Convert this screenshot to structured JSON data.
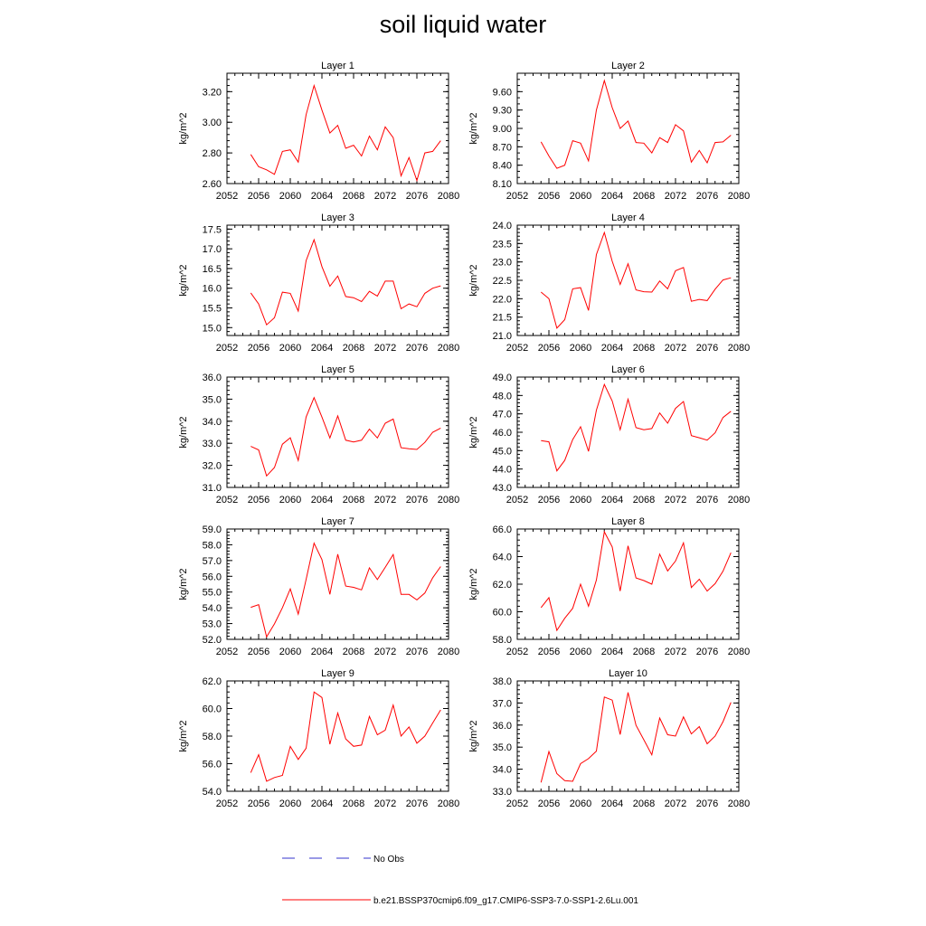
{
  "title": "soil liquid water",
  "legend": {
    "obs_label": "No Obs",
    "model_label": "b.e21.BSSP370cmip6.f09_g17.CMIP6-SSP3-7.0-SSP1-2.6Lu.001",
    "obs_color": "#3333cc",
    "model_color": "#ff0000"
  },
  "chart_data": [
    {
      "type": "line",
      "title": "Layer 1",
      "ylabel": "kg/m^2",
      "xlim": [
        2052,
        2080
      ],
      "xticks": [
        2052,
        2056,
        2060,
        2064,
        2068,
        2072,
        2076,
        2080
      ],
      "ylim": [
        2.6,
        3.32
      ],
      "yticks": [
        "2.60",
        "2.80",
        "3.00",
        "3.20"
      ],
      "yminor": 0.04,
      "x": [
        2055,
        2056,
        2057,
        2058,
        2059,
        2060,
        2061,
        2062,
        2063,
        2064,
        2065,
        2066,
        2067,
        2068,
        2069,
        2070,
        2071,
        2072,
        2073,
        2074,
        2075,
        2076,
        2077,
        2078,
        2079
      ],
      "y": [
        2.79,
        2.71,
        2.69,
        2.66,
        2.81,
        2.82,
        2.74,
        3.05,
        3.24,
        3.08,
        2.93,
        2.98,
        2.83,
        2.85,
        2.78,
        2.91,
        2.82,
        2.97,
        2.9,
        2.65,
        2.77,
        2.62,
        2.8,
        2.81,
        2.88
      ]
    },
    {
      "type": "line",
      "title": "Layer 2",
      "ylabel": "kg/m^2",
      "xlim": [
        2052,
        2080
      ],
      "xticks": [
        2052,
        2056,
        2060,
        2064,
        2068,
        2072,
        2076,
        2080
      ],
      "ylim": [
        8.1,
        9.9
      ],
      "yticks": [
        "8.10",
        "8.40",
        "8.70",
        "9.00",
        "9.30",
        "9.60"
      ],
      "yminor": 0.1,
      "x": [
        2055,
        2056,
        2057,
        2058,
        2059,
        2060,
        2061,
        2062,
        2063,
        2064,
        2065,
        2066,
        2067,
        2068,
        2069,
        2070,
        2071,
        2072,
        2073,
        2074,
        2075,
        2076,
        2077,
        2078,
        2079
      ],
      "y": [
        8.78,
        8.55,
        8.35,
        8.4,
        8.8,
        8.76,
        8.47,
        9.3,
        9.78,
        9.34,
        9.0,
        9.12,
        8.77,
        8.76,
        8.6,
        8.85,
        8.77,
        9.06,
        8.96,
        8.45,
        8.64,
        8.44,
        8.77,
        8.78,
        8.89
      ]
    },
    {
      "type": "line",
      "title": "Layer 3",
      "ylabel": "kg/m^2",
      "xlim": [
        2052,
        2080
      ],
      "xticks": [
        2052,
        2056,
        2060,
        2064,
        2068,
        2072,
        2076,
        2080
      ],
      "ylim": [
        14.8,
        17.6
      ],
      "yticks": [
        "15.0",
        "15.5",
        "16.0",
        "16.5",
        "17.0",
        "17.5"
      ],
      "yminor": 0.1,
      "x": [
        2055,
        2056,
        2057,
        2058,
        2059,
        2060,
        2061,
        2062,
        2063,
        2064,
        2065,
        2066,
        2067,
        2068,
        2069,
        2070,
        2071,
        2072,
        2073,
        2074,
        2075,
        2076,
        2077,
        2078,
        2079
      ],
      "y": [
        15.88,
        15.6,
        15.07,
        15.25,
        15.9,
        15.87,
        15.42,
        16.7,
        17.23,
        16.55,
        16.05,
        16.31,
        15.79,
        15.76,
        15.66,
        15.92,
        15.8,
        16.18,
        16.18,
        15.48,
        15.6,
        15.53,
        15.87,
        16.0,
        16.06
      ]
    },
    {
      "type": "line",
      "title": "Layer 4",
      "ylabel": "kg/m^2",
      "xlim": [
        2052,
        2080
      ],
      "xticks": [
        2052,
        2056,
        2060,
        2064,
        2068,
        2072,
        2076,
        2080
      ],
      "ylim": [
        21.0,
        24.0
      ],
      "yticks": [
        "21.0",
        "21.5",
        "22.0",
        "22.5",
        "23.0",
        "23.5",
        "24.0"
      ],
      "yminor": 0.1,
      "x": [
        2055,
        2056,
        2057,
        2058,
        2059,
        2060,
        2061,
        2062,
        2063,
        2064,
        2065,
        2066,
        2067,
        2068,
        2069,
        2070,
        2071,
        2072,
        2073,
        2074,
        2075,
        2076,
        2077,
        2078,
        2079
      ],
      "y": [
        22.18,
        22.0,
        21.2,
        21.43,
        22.27,
        22.3,
        21.68,
        23.2,
        23.8,
        23.02,
        22.39,
        22.95,
        22.24,
        22.19,
        22.18,
        22.48,
        22.27,
        22.76,
        22.85,
        21.93,
        21.98,
        21.95,
        22.26,
        22.51,
        22.57
      ]
    },
    {
      "type": "line",
      "title": "Layer 5",
      "ylabel": "kg/m^2",
      "xlim": [
        2052,
        2080
      ],
      "xticks": [
        2052,
        2056,
        2060,
        2064,
        2068,
        2072,
        2076,
        2080
      ],
      "ylim": [
        31.0,
        36.0
      ],
      "yticks": [
        "31.0",
        "32.0",
        "33.0",
        "34.0",
        "35.0",
        "36.0"
      ],
      "yminor": 0.2,
      "x": [
        2055,
        2056,
        2057,
        2058,
        2059,
        2060,
        2061,
        2062,
        2063,
        2064,
        2065,
        2066,
        2067,
        2068,
        2069,
        2070,
        2071,
        2072,
        2073,
        2074,
        2075,
        2076,
        2077,
        2078,
        2079
      ],
      "y": [
        32.86,
        32.7,
        31.52,
        31.9,
        32.96,
        33.25,
        32.22,
        34.19,
        35.07,
        34.19,
        33.24,
        34.24,
        33.14,
        33.06,
        33.14,
        33.64,
        33.24,
        33.91,
        34.1,
        32.8,
        32.75,
        32.72,
        33.04,
        33.5,
        33.69
      ]
    },
    {
      "type": "line",
      "title": "Layer 6",
      "ylabel": "kg/m^2",
      "xlim": [
        2052,
        2080
      ],
      "xticks": [
        2052,
        2056,
        2060,
        2064,
        2068,
        2072,
        2076,
        2080
      ],
      "ylim": [
        43.0,
        49.0
      ],
      "yticks": [
        "43.0",
        "44.0",
        "45.0",
        "46.0",
        "47.0",
        "48.0",
        "49.0"
      ],
      "yminor": 0.2,
      "x": [
        2055,
        2056,
        2057,
        2058,
        2059,
        2060,
        2061,
        2062,
        2063,
        2064,
        2065,
        2066,
        2067,
        2068,
        2069,
        2070,
        2071,
        2072,
        2073,
        2074,
        2075,
        2076,
        2077,
        2078,
        2079
      ],
      "y": [
        45.55,
        45.48,
        43.9,
        44.47,
        45.6,
        46.3,
        44.96,
        47.2,
        48.6,
        47.7,
        46.14,
        47.8,
        46.25,
        46.14,
        46.2,
        47.05,
        46.49,
        47.3,
        47.67,
        45.82,
        45.7,
        45.57,
        45.97,
        46.8,
        47.14
      ]
    },
    {
      "type": "line",
      "title": "Layer 7",
      "ylabel": "kg/m^2",
      "xlim": [
        2052,
        2080
      ],
      "xticks": [
        2052,
        2056,
        2060,
        2064,
        2068,
        2072,
        2076,
        2080
      ],
      "ylim": [
        52.0,
        59.0
      ],
      "yticks": [
        "52.0",
        "53.0",
        "54.0",
        "55.0",
        "56.0",
        "57.0",
        "58.0",
        "59.0"
      ],
      "yminor": 0.2,
      "x": [
        2055,
        2056,
        2057,
        2058,
        2059,
        2060,
        2061,
        2062,
        2063,
        2064,
        2065,
        2066,
        2067,
        2068,
        2069,
        2070,
        2071,
        2072,
        2073,
        2074,
        2075,
        2076,
        2077,
        2078,
        2079
      ],
      "y": [
        54.03,
        54.2,
        52.16,
        52.98,
        54.0,
        55.2,
        53.6,
        55.8,
        58.1,
        57.06,
        54.85,
        57.4,
        55.38,
        55.3,
        55.14,
        56.53,
        55.79,
        56.57,
        57.38,
        54.85,
        54.85,
        54.5,
        54.94,
        55.91,
        56.62
      ]
    },
    {
      "type": "line",
      "title": "Layer 8",
      "ylabel": "kg/m^2",
      "xlim": [
        2052,
        2080
      ],
      "xticks": [
        2052,
        2056,
        2060,
        2064,
        2068,
        2072,
        2076,
        2080
      ],
      "ylim": [
        58.0,
        66.0
      ],
      "yticks": [
        "58.0",
        "60.0",
        "62.0",
        "64.0",
        "66.0"
      ],
      "yminor": 0.4,
      "x": [
        2055,
        2056,
        2057,
        2058,
        2059,
        2060,
        2061,
        2062,
        2063,
        2064,
        2065,
        2066,
        2067,
        2068,
        2069,
        2070,
        2071,
        2072,
        2073,
        2074,
        2075,
        2076,
        2077,
        2078,
        2079
      ],
      "y": [
        60.3,
        61.02,
        58.65,
        59.53,
        60.25,
        62.0,
        60.4,
        62.3,
        65.8,
        64.7,
        61.5,
        64.78,
        62.45,
        62.26,
        62.0,
        64.18,
        62.96,
        63.68,
        65.0,
        61.76,
        62.36,
        61.5,
        62.04,
        62.94,
        64.28
      ]
    },
    {
      "type": "line",
      "title": "Layer 9",
      "ylabel": "kg/m^2",
      "xlim": [
        2052,
        2080
      ],
      "xticks": [
        2052,
        2056,
        2060,
        2064,
        2068,
        2072,
        2076,
        2080
      ],
      "ylim": [
        54.0,
        62.0
      ],
      "yticks": [
        "54.0",
        "56.0",
        "58.0",
        "60.0",
        "62.0"
      ],
      "yminor": 0.4,
      "x": [
        2055,
        2056,
        2057,
        2058,
        2059,
        2060,
        2061,
        2062,
        2063,
        2064,
        2065,
        2066,
        2067,
        2068,
        2069,
        2070,
        2071,
        2072,
        2073,
        2074,
        2075,
        2076,
        2077,
        2078,
        2079
      ],
      "y": [
        55.35,
        56.65,
        54.73,
        55.0,
        55.15,
        57.25,
        56.31,
        57.12,
        61.2,
        60.8,
        57.41,
        59.67,
        57.8,
        57.26,
        57.35,
        59.42,
        58.1,
        58.43,
        60.25,
        58.0,
        58.66,
        57.48,
        58.0,
        58.95,
        59.9
      ]
    },
    {
      "type": "line",
      "title": "Layer 10",
      "ylabel": "kg/m^2",
      "xlim": [
        2052,
        2080
      ],
      "xticks": [
        2052,
        2056,
        2060,
        2064,
        2068,
        2072,
        2076,
        2080
      ],
      "ylim": [
        33.0,
        38.0
      ],
      "yticks": [
        "33.0",
        "34.0",
        "35.0",
        "36.0",
        "37.0",
        "38.0"
      ],
      "yminor": 0.2,
      "x": [
        2055,
        2056,
        2057,
        2058,
        2059,
        2060,
        2061,
        2062,
        2063,
        2064,
        2065,
        2066,
        2067,
        2068,
        2069,
        2070,
        2071,
        2072,
        2073,
        2074,
        2075,
        2076,
        2077,
        2078,
        2079
      ],
      "y": [
        33.4,
        34.8,
        33.8,
        33.48,
        33.45,
        34.25,
        34.48,
        34.82,
        37.27,
        37.13,
        35.57,
        37.48,
        35.99,
        35.33,
        34.65,
        36.32,
        35.56,
        35.5,
        36.37,
        35.6,
        35.93,
        35.15,
        35.5,
        36.15,
        37.03
      ]
    }
  ]
}
